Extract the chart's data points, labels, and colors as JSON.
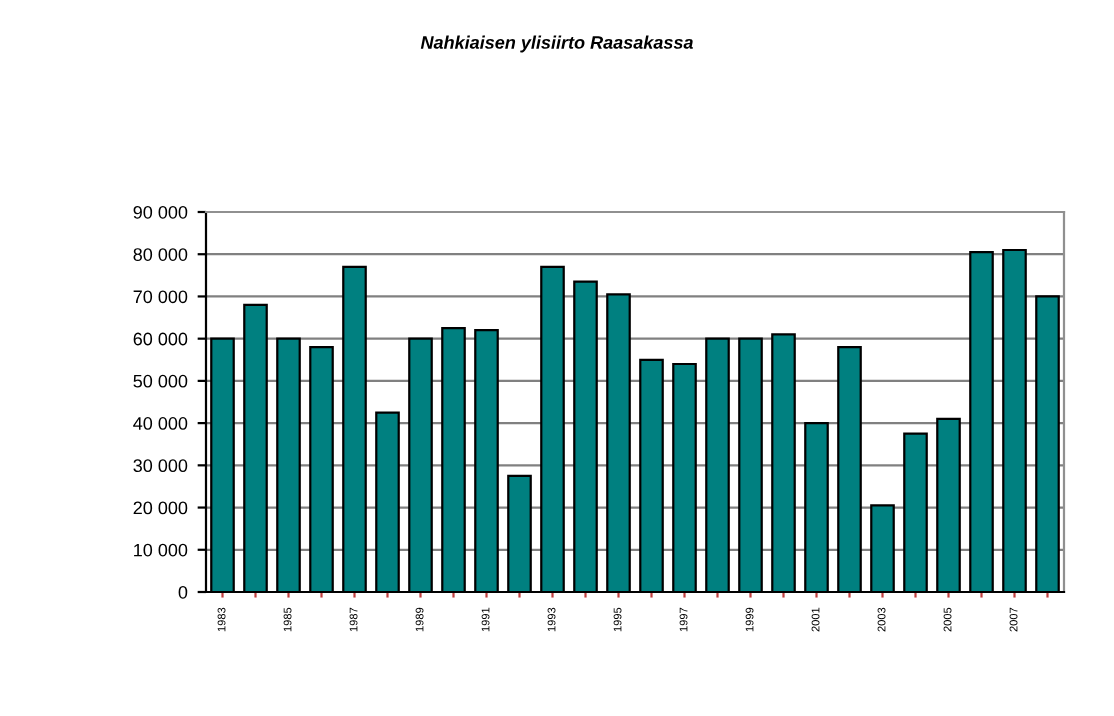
{
  "chart_data": {
    "type": "bar",
    "title": "Nahkiaisen ylisiirto Raasakassa",
    "categories": [
      "1983",
      null,
      "1985",
      null,
      "1987",
      null,
      "1989",
      null,
      "1991",
      null,
      "1993",
      null,
      "1995",
      null,
      "1997",
      null,
      "1999",
      null,
      "2001",
      null,
      "2003",
      null,
      "2005",
      null,
      "2007",
      null
    ],
    "values": [
      60000,
      68000,
      60000,
      58000,
      77000,
      42500,
      60000,
      62500,
      62000,
      27500,
      77000,
      73500,
      70500,
      55000,
      54000,
      60000,
      60000,
      61000,
      40000,
      58000,
      20500,
      37500,
      41000,
      80500,
      81000,
      70000
    ],
    "color": "#008080",
    "ylim": [
      0,
      90000
    ],
    "yticks": [
      {
        "value": 0,
        "label": "0"
      },
      {
        "value": 10000,
        "label": "10 000"
      },
      {
        "value": 20000,
        "label": "20 000"
      },
      {
        "value": 30000,
        "label": "30 000"
      },
      {
        "value": 40000,
        "label": "40 000"
      },
      {
        "value": 50000,
        "label": "50 000"
      },
      {
        "value": 60000,
        "label": "60 000"
      },
      {
        "value": 70000,
        "label": "70 000"
      },
      {
        "value": 80000,
        "label": "80 000"
      },
      {
        "value": 90000,
        "label": "90 000"
      }
    ],
    "grid": "y",
    "legend": false
  }
}
